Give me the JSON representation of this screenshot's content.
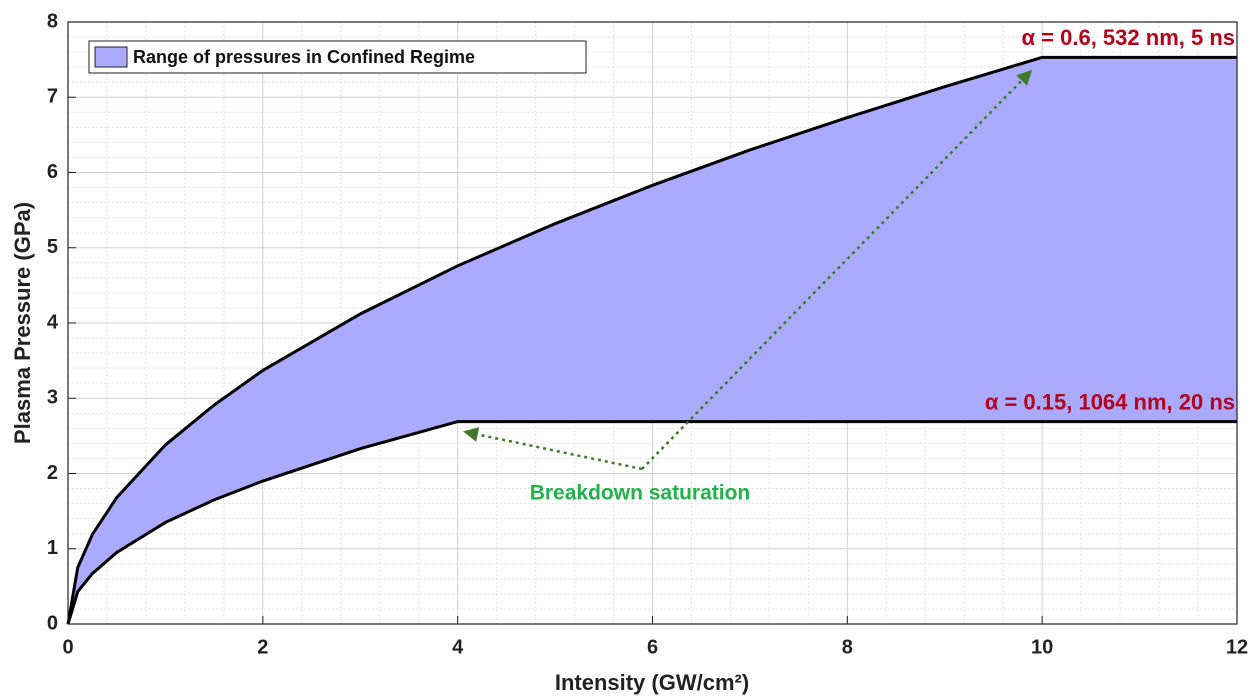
{
  "chart_data": {
    "type": "area-between",
    "x_label": "Intensity (GW/cm²)",
    "y_label": "Plasma Pressure (GPa)",
    "fill_name": "Range of pressures in Confined Regime",
    "fill_color": "#aaaaff",
    "x": [
      0,
      0.1,
      0.25,
      0.5,
      1,
      1.5,
      2,
      3,
      4,
      5,
      6,
      7,
      8,
      9,
      10,
      11,
      12
    ],
    "series": [
      {
        "name": "α = 0.6, 532 nm, 5 ns",
        "color": "#000000",
        "label_color": "#b3001b",
        "values": [
          0,
          0.75,
          1.19,
          1.68,
          2.38,
          2.91,
          3.37,
          4.12,
          4.76,
          5.32,
          5.83,
          6.3,
          6.73,
          7.14,
          7.53,
          7.53,
          7.53
        ]
      },
      {
        "name": "α = 0.15, 1064 nm, 20 ns",
        "color": "#000000",
        "label_color": "#b3001b",
        "values": [
          0,
          0.43,
          0.67,
          0.95,
          1.35,
          1.65,
          1.9,
          2.33,
          2.69,
          2.69,
          2.69,
          2.69,
          2.69,
          2.69,
          2.69,
          2.69,
          2.69
        ]
      }
    ],
    "annotation": {
      "text": "Breakdown saturation",
      "color": "#22b04a"
    },
    "xlim": [
      0,
      12
    ],
    "xticks": [
      0,
      2,
      4,
      6,
      8,
      10,
      12
    ],
    "ylim": [
      0,
      8
    ],
    "yticks": [
      0,
      1,
      2,
      3,
      4,
      5,
      6,
      7,
      8
    ],
    "grid": true,
    "minor_grid": true,
    "legend": "upper left"
  }
}
